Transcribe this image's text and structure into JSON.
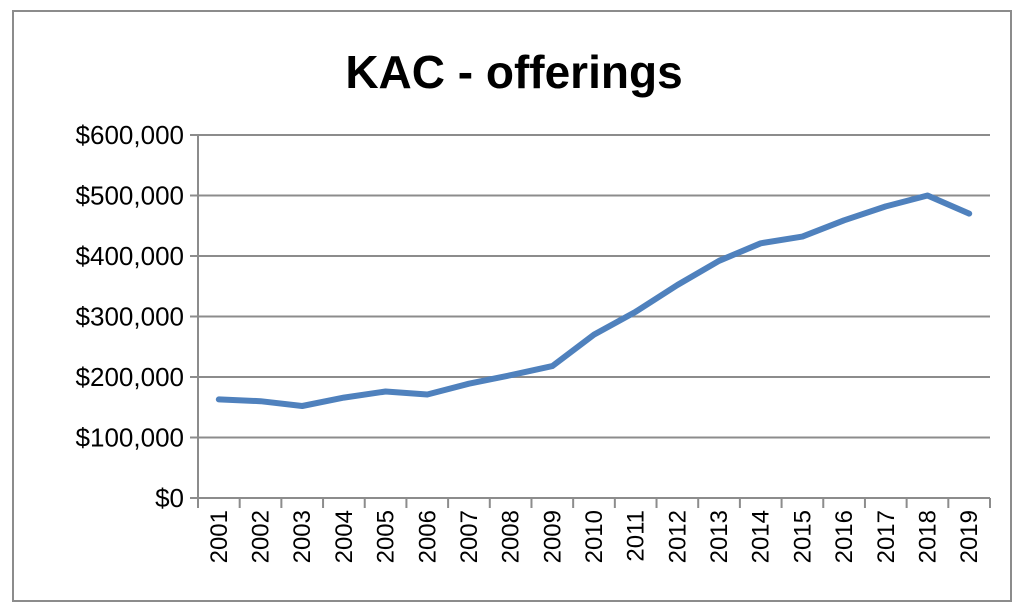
{
  "chart_data": {
    "type": "line",
    "title": "KAC -  offerings",
    "xlabel": "",
    "ylabel": "",
    "grid": true,
    "legend": "none",
    "ylim": [
      0,
      600000
    ],
    "yticks": [
      0,
      100000,
      200000,
      300000,
      400000,
      500000,
      600000
    ],
    "ytick_labels": [
      "$0",
      "$100,000",
      "$200,000",
      "$300,000",
      "$400,000",
      "$500,000",
      "$600,000"
    ],
    "categories": [
      "2001",
      "2002",
      "2003",
      "2004",
      "2005",
      "2006",
      "2007",
      "2008",
      "2009",
      "2010",
      "2011",
      "2012",
      "2013",
      "2014",
      "2015",
      "2016",
      "2017",
      "2018",
      "2019"
    ],
    "series": [
      {
        "values": [
          163000,
          160000,
          152000,
          166000,
          176000,
          171000,
          189000,
          203000,
          218000,
          270000,
          308000,
          352000,
          392000,
          421000,
          432000,
          459000,
          482000,
          500000,
          470000
        ]
      }
    ],
    "colors": {
      "line": "#4f81bd",
      "grid": "#8c8c8c",
      "frame": "#8c8c8c"
    }
  }
}
